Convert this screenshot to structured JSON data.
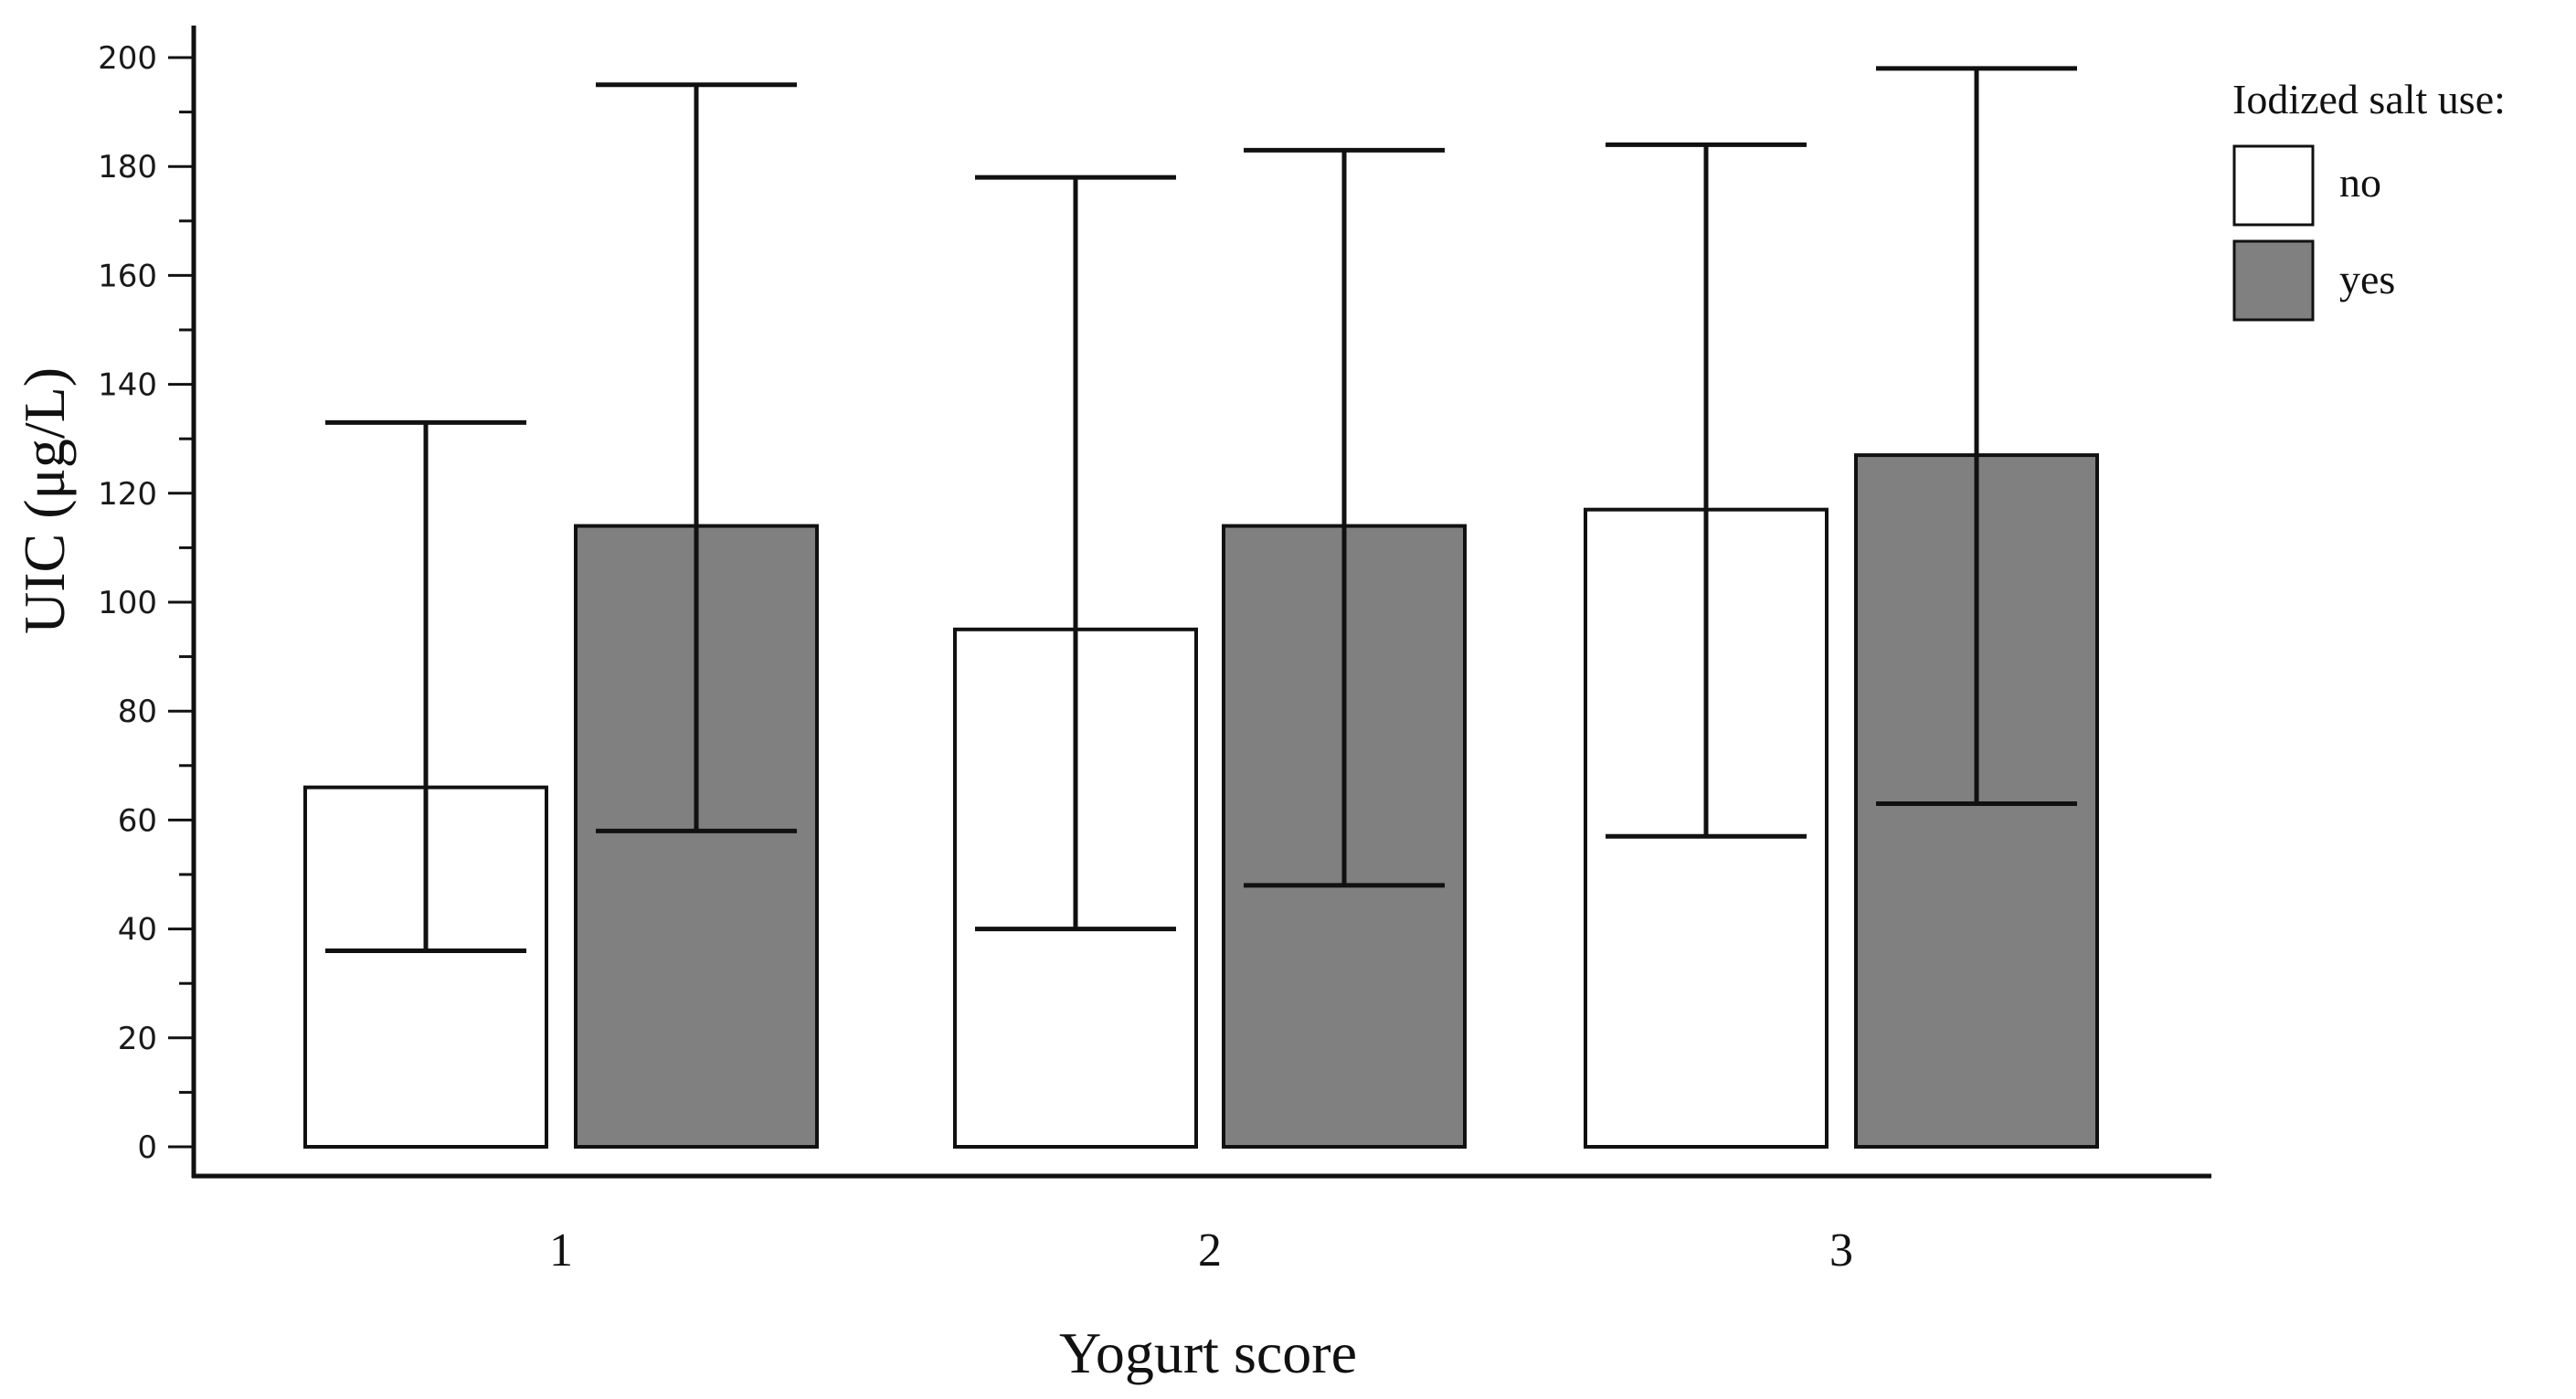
{
  "chart_data": {
    "type": "bar",
    "title": "",
    "xlabel": "Yogurt score",
    "ylabel": "UIC (μg/L)",
    "categories": [
      "1",
      "2",
      "3"
    ],
    "ylim": [
      0,
      200
    ],
    "yticks": [
      0,
      20,
      40,
      60,
      80,
      100,
      120,
      140,
      160,
      180,
      200
    ],
    "legend": {
      "title": "Iodized salt use:",
      "position": "top-right"
    },
    "series": [
      {
        "name": "no",
        "color": "#ffffff",
        "values": [
          66,
          95,
          117
        ],
        "error_low": [
          36,
          40,
          57
        ],
        "error_high": [
          133,
          178,
          184
        ]
      },
      {
        "name": "yes",
        "color": "#808080",
        "values": [
          114,
          114,
          127
        ],
        "error_low": [
          58,
          48,
          63
        ],
        "error_high": [
          195,
          183,
          198
        ]
      }
    ]
  }
}
